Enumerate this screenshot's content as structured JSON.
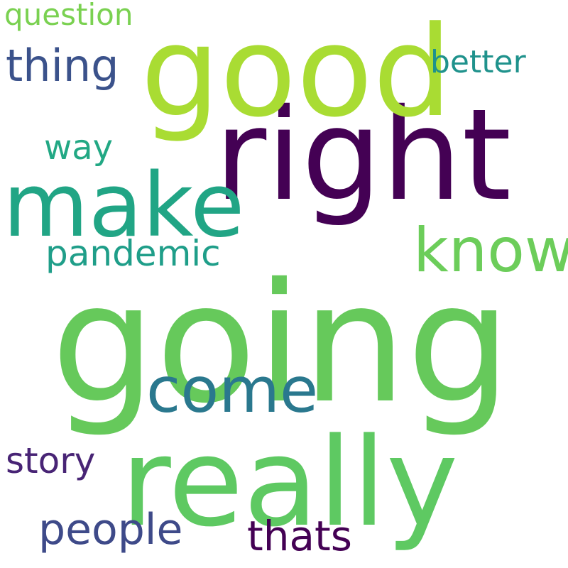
{
  "word_cloud": {
    "words": [
      {
        "text": "going",
        "color": "#66c95b"
      },
      {
        "text": "really",
        "color": "#5ec962"
      },
      {
        "text": "right",
        "color": "#440154"
      },
      {
        "text": "good",
        "color": "#a9dc33"
      },
      {
        "text": "make",
        "color": "#21a585"
      },
      {
        "text": "know",
        "color": "#6ccd5a"
      },
      {
        "text": "come",
        "color": "#2a788e"
      },
      {
        "text": "thing",
        "color": "#3b528b"
      },
      {
        "text": "people",
        "color": "#3e4a89"
      },
      {
        "text": "thats",
        "color": "#440154"
      },
      {
        "text": "story",
        "color": "#482475"
      },
      {
        "text": "pandemic",
        "color": "#1f9e89"
      },
      {
        "text": "way",
        "color": "#22a884"
      },
      {
        "text": "better",
        "color": "#1f928c"
      },
      {
        "text": "question",
        "color": "#7ad151"
      }
    ]
  }
}
